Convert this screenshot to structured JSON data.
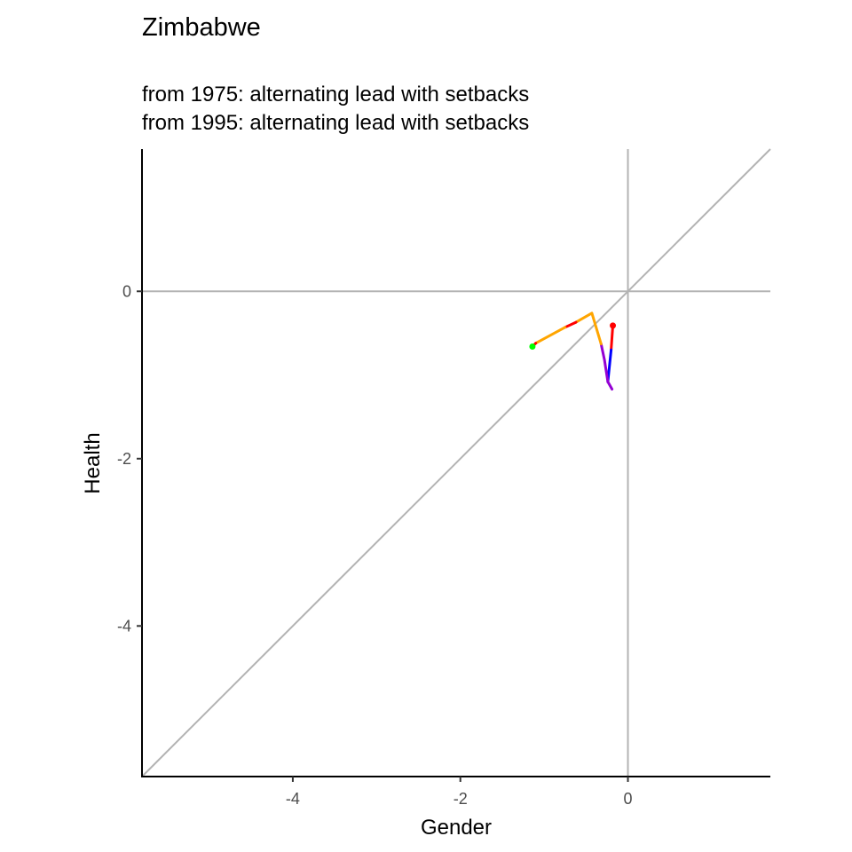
{
  "chart_data": {
    "type": "line",
    "title": "Zimbabwe",
    "subtitle_lines": [
      "from 1975:  alternating lead with setbacks",
      "from 1995:  alternating lead with setbacks"
    ],
    "xlabel": "Gender",
    "ylabel": "Health",
    "xlim": [
      -5.8,
      1.7
    ],
    "ylim": [
      -5.8,
      1.7
    ],
    "x_ticks": [
      -4,
      -2,
      0
    ],
    "y_ticks": [
      -4,
      -2,
      0
    ],
    "x_tick_labels": [
      "-4",
      "-2",
      "0"
    ],
    "y_tick_labels": [
      "-4",
      "-2",
      "0"
    ],
    "reference_lines": {
      "hline_y": 0,
      "vline_x": 0,
      "diagonal": "y = x",
      "color": "#b3b3b3"
    },
    "grid": false,
    "path_segments": [
      {
        "color": "#ff0000",
        "points": [
          [
            -0.18,
            -0.41
          ],
          [
            -0.2,
            -0.7
          ]
        ]
      },
      {
        "color": "#0000ff",
        "points": [
          [
            -0.2,
            -0.7
          ],
          [
            -0.24,
            -1.08
          ]
        ]
      },
      {
        "color": "#9400d3",
        "points": [
          [
            -0.24,
            -1.08
          ],
          [
            -0.19,
            -1.17
          ]
        ]
      },
      {
        "color": "#9400d3",
        "points": [
          [
            -0.24,
            -1.08
          ],
          [
            -0.28,
            -0.82
          ],
          [
            -0.32,
            -0.63
          ]
        ]
      },
      {
        "color": "#ffa500",
        "points": [
          [
            -0.32,
            -0.63
          ],
          [
            -0.43,
            -0.26
          ],
          [
            -0.62,
            -0.37
          ]
        ]
      },
      {
        "color": "#ff0000",
        "points": [
          [
            -0.62,
            -0.37
          ],
          [
            -0.75,
            -0.43
          ]
        ]
      },
      {
        "color": "#ffa500",
        "points": [
          [
            -0.75,
            -0.43
          ],
          [
            -1.1,
            -0.62
          ]
        ]
      },
      {
        "color": "#ff0000",
        "points": [
          [
            -1.1,
            -0.62
          ],
          [
            -1.14,
            -0.66
          ]
        ]
      }
    ],
    "start_point": {
      "x": -1.14,
      "y": -0.66,
      "color": "#00ff00"
    },
    "end_point": {
      "x": -0.18,
      "y": -0.41,
      "color": "#ff0000"
    }
  }
}
